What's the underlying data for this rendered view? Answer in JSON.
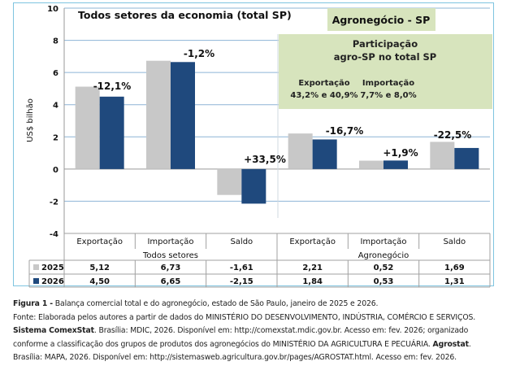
{
  "chart_data": {
    "type": "bar",
    "title_left": "Todos setores da economia (total SP)",
    "title_right": "Agronegócio - SP",
    "ylabel": "US$ bilhão",
    "ylim": [
      -4,
      10
    ],
    "yticks": [
      10,
      8,
      6,
      4,
      2,
      0,
      -2,
      -4
    ],
    "grid": true,
    "categories": [
      "Exportação",
      "Importação",
      "Saldo",
      "Exportação",
      "Importação",
      "Saldo"
    ],
    "groups": [
      {
        "label": "Todos setores",
        "categories": [
          0,
          1,
          2
        ]
      },
      {
        "label": "Agronegócio",
        "categories": [
          3,
          4,
          5
        ]
      }
    ],
    "series": [
      {
        "name": "2025",
        "color": "#c8c8c8",
        "values": [
          5.12,
          6.73,
          -1.61,
          2.21,
          0.52,
          1.69
        ],
        "labels": [
          "5,12",
          "6,73",
          "-1,61",
          "2,21",
          "0,52",
          "1,69"
        ]
      },
      {
        "name": "2026",
        "color": "#1f497d",
        "values": [
          4.5,
          6.65,
          -2.15,
          1.84,
          0.53,
          1.31
        ],
        "labels": [
          "4,50",
          "6,65",
          "-2,15",
          "1,84",
          "0,53",
          "1,31"
        ]
      }
    ],
    "annotations": [
      "-12,1%",
      "-1,2%",
      "+33,5%",
      "-16,7%",
      "+1,9%",
      "-22,5%"
    ],
    "info_box": {
      "title_line1": "Participação",
      "title_line2": "agro-SP no total SP",
      "col1_label": "Exportação",
      "col1_value": "43,2% e 40,9%",
      "col2_label": "Importação",
      "col2_value": "7,7% e 8,0%"
    },
    "legend_placement": "table-bottom"
  },
  "caption": {
    "figure_label": "Figura 1 -",
    "figure_text": " Balança comercial total e do agronegócio, estado de São Paulo, janeiro de 2025 e 2026.",
    "source_line1": "Fonte: Elaborada pelos autores a partir de dados do MINISTÉRIO DO DESENVOLVIMENTO, INDÚSTRIA, COMÉRCIO E SERVIÇOS.",
    "source_bold1": "Sistema ComexStat",
    "source_line2": ". Brasília: MDIC, 2026. Disponível em: http://comexstat.mdic.gov.br. Acesso em: fev. 2026; organizado",
    "source_line3a": "conforme a classificação dos grupos de produtos dos agronegócios do MINISTÉRIO DA AGRICULTURA E PECUÁRIA. ",
    "source_bold2": "Agrostat",
    "source_line3b": ".",
    "source_line4": "Brasília: MAPA, 2026. Disponível em: http://sistemasweb.agricultura.gov.br/pages/AGROSTAT.html. Acesso em: fev. 2026."
  }
}
